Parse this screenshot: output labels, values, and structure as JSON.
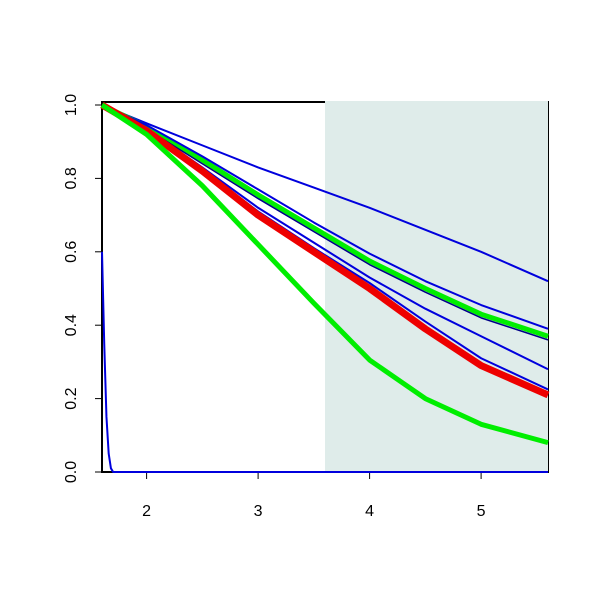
{
  "chart_data": {
    "type": "line",
    "x": [
      1.6,
      2,
      2.5,
      3,
      3.5,
      4,
      4.5,
      5,
      5.6
    ],
    "series": [
      {
        "color": "#0000dd",
        "width": 2,
        "values": [
          1,
          0.95,
          0.89,
          0.83,
          0.775,
          0.72,
          0.66,
          0.6,
          0.52
        ]
      },
      {
        "color": "#00ee00",
        "width": 5,
        "values": [
          1,
          0.94,
          0.85,
          0.755,
          0.665,
          0.575,
          0.5,
          0.43,
          0.37
        ]
      },
      {
        "color": "#0000dd",
        "width": 2,
        "values": [
          1,
          0.945,
          0.86,
          0.77,
          0.68,
          0.595,
          0.52,
          0.455,
          0.39
        ]
      },
      {
        "color": "#000088",
        "width": 1.5,
        "values": [
          1,
          0.935,
          0.84,
          0.745,
          0.655,
          0.565,
          0.49,
          0.42,
          0.36
        ]
      },
      {
        "color": "#0000dd",
        "width": 2,
        "values": [
          1,
          0.935,
          0.83,
          0.72,
          0.625,
          0.53,
          0.445,
          0.37,
          0.28
        ]
      },
      {
        "color": "#0000dd",
        "width": 2,
        "values": [
          1,
          0.935,
          0.825,
          0.71,
          0.61,
          0.515,
          0.41,
          0.31,
          0.225
        ]
      },
      {
        "color": "#ee0000",
        "width": 7,
        "values": [
          1,
          0.93,
          0.82,
          0.7,
          0.6,
          0.5,
          0.39,
          0.29,
          0.21
        ]
      },
      {
        "color": "#00ee00",
        "width": 5,
        "values": [
          1,
          0.92,
          0.78,
          0.62,
          0.46,
          0.305,
          0.2,
          0.13,
          0.08
        ]
      },
      {
        "color": "#0000dd",
        "width": 2,
        "x": [
          1.6,
          1.62,
          1.64,
          1.66,
          1.68,
          1.7,
          5.6
        ],
        "values": [
          0.6,
          0.35,
          0.15,
          0.05,
          0.01,
          0,
          0
        ]
      }
    ],
    "xlim": [
      1.6,
      5.6
    ],
    "xticks": [
      2,
      3,
      4,
      5
    ],
    "ylim": [
      0,
      1
    ],
    "yticks": [
      {
        "value": 0,
        "label": "0.0"
      },
      {
        "value": 0.2,
        "label": "0.2"
      },
      {
        "value": 0.4,
        "label": "0.4"
      },
      {
        "value": 0.6,
        "label": "0.6"
      },
      {
        "value": 0.8,
        "label": "0.8"
      },
      {
        "value": 1,
        "label": "1.0"
      }
    ],
    "shaded_region": {
      "x": [
        3.6,
        5.6
      ],
      "color": "#dfecea"
    }
  }
}
